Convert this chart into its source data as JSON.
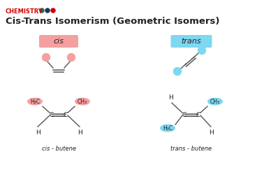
{
  "title": "Cis-Trans Isomerism (Geometric Isomers)",
  "chemistry_label": "CHEMISTRY",
  "chemistry_color": "#cc0000",
  "dot_colors": [
    "#2d6a4f",
    "#1d3461",
    "#cc0000"
  ],
  "bg_color": "#ffffff",
  "cis_label": "cis",
  "trans_label": "trans",
  "cis_box_color": "#f4a0a0",
  "trans_box_color": "#7dd8f0",
  "cis_dot_color": "#f4a0a0",
  "trans_dot_color": "#7dd8f0",
  "cis_group_color": "#f4a0a0",
  "trans_group_color": "#7dd8f0",
  "cis_butene_label": "cis - butene",
  "trans_butene_label": "trans - butene",
  "bond_color": "#555555",
  "text_color": "#222222"
}
